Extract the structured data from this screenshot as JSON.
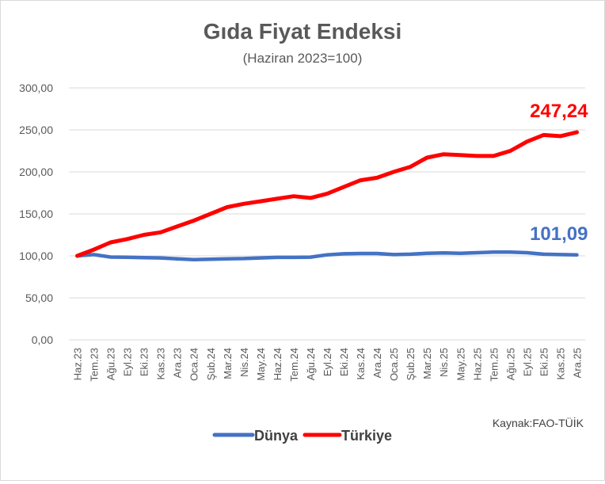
{
  "chart_data": {
    "type": "line",
    "title": "Gıda Fiyat Endeksi",
    "subtitle": "(Haziran 2023=100)",
    "source": "Kaynak:FAO-TÜİK",
    "ylim": [
      0,
      300
    ],
    "y_ticks": [
      "0,00",
      "50,00",
      "100,00",
      "150,00",
      "200,00",
      "250,00",
      "300,00"
    ],
    "y_tick_values": [
      0,
      50,
      100,
      150,
      200,
      250,
      300
    ],
    "grid": true,
    "legend_position": "bottom",
    "categories": [
      "Haz.23",
      "Tem.23",
      "Ağu.23",
      "Eyl.23",
      "Eki.23",
      "Kas.23",
      "Ara.23",
      "Oca.24",
      "Şub.24",
      "Mar.24",
      "Nis.24",
      "May.24",
      "Haz.24",
      "Tem.24",
      "Ağu.24",
      "Eyl.24",
      "Eki.24",
      "Kas.24",
      "Ara.24",
      "Oca.25",
      "Şub.25",
      "Mar.25",
      "Nis.25",
      "May.25",
      "Haz.25",
      "Tem.25",
      "Ağu.25",
      "Eyl.25",
      "Eki.25",
      "Kas.25",
      "Ara.25"
    ],
    "series": [
      {
        "name": "Dünya",
        "color": "#4472c4",
        "end_label": "101,09",
        "values": [
          100,
          101.5,
          98.6,
          98.4,
          97.8,
          97.5,
          96.5,
          95.5,
          96,
          96.5,
          96.8,
          97.5,
          98.2,
          98.2,
          98.5,
          101.2,
          102.5,
          102.8,
          102.8,
          101.5,
          102,
          103,
          103.5,
          103,
          103.8,
          104.5,
          104.5,
          103.8,
          102,
          101.5,
          101.09
        ]
      },
      {
        "name": "Türkiye",
        "color": "#ff0000",
        "end_label": "247,24",
        "values": [
          100,
          107.5,
          116,
          120,
          125,
          128,
          135,
          142,
          150,
          158,
          162,
          165,
          168,
          171,
          169,
          174,
          182,
          190,
          193,
          200,
          206,
          217,
          221,
          220,
          219,
          219,
          225,
          236,
          244,
          242.5,
          247.24
        ]
      }
    ]
  }
}
